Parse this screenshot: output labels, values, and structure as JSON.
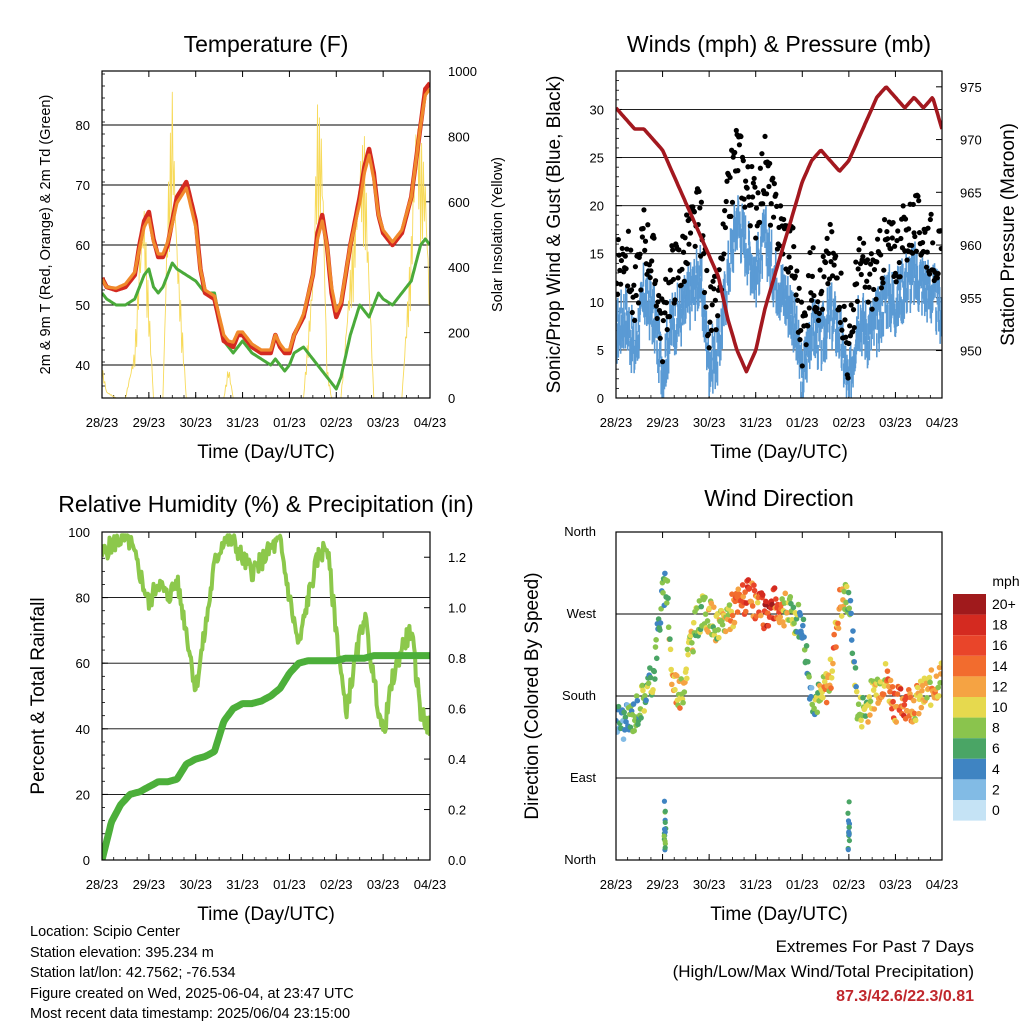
{
  "info": {
    "location": "Location: Scipio Center",
    "elevation": "Station elevation: 395.234 m",
    "latlon": "Station lat/lon: 42.7562; -76.534",
    "created": "Figure created on Wed, 2025-06-04, at 23:47 UTC",
    "recent": "Most recent data timestamp: 2025/06/04 23:15:00"
  },
  "extremes": {
    "title": "Extremes For Past 7 Days",
    "subtitle": "(High/Low/Max Wind/Total Precipitation)",
    "values": "87.3/42.6/22.3/0.81"
  },
  "colors": {
    "t2": "#d42a20",
    "t9": "#f08a2c",
    "td": "#4aaa3a",
    "solar": "#f7da5a",
    "sonic": "#5a9ad4",
    "gust": "#000000",
    "pressure": "#a3181f",
    "rh": "#8cc84b",
    "precip": "#4caf3a"
  },
  "chart_data": [
    {
      "type": "line",
      "title": "Temperature (F)",
      "xlabel": "Time (Day/UTC)",
      "ylabel": "2m & 9m T (Red, Orange) & 2m Td (Green)",
      "y2label": "Solar Insolation (Yellow)",
      "x_ticks": [
        "28/23",
        "29/23",
        "30/23",
        "31/23",
        "01/23",
        "02/23",
        "03/23",
        "04/23"
      ],
      "ylim": [
        34.5,
        89
      ],
      "y_ticks": [
        40,
        50,
        60,
        70,
        80
      ],
      "y2lim": [
        0,
        1000
      ],
      "y2_ticks": [
        0,
        200,
        400,
        600,
        800,
        1000
      ],
      "grid": true,
      "x": [
        0,
        0.1,
        0.3,
        0.5,
        0.7,
        0.8,
        0.9,
        1.0,
        1.1,
        1.2,
        1.3,
        1.4,
        1.5,
        1.6,
        1.8,
        2.0,
        2.1,
        2.2,
        2.4,
        2.6,
        2.7,
        2.8,
        2.9,
        3.0,
        3.2,
        3.4,
        3.6,
        3.7,
        3.8,
        3.9,
        4.0,
        4.1,
        4.3,
        4.5,
        4.6,
        4.7,
        4.8,
        4.9,
        5.0,
        5.1,
        5.3,
        5.5,
        5.6,
        5.7,
        5.8,
        5.9,
        6.0,
        6.2,
        6.4,
        6.6,
        6.7,
        6.8,
        6.9,
        7.0
      ],
      "series": [
        {
          "name": "2m T",
          "color": "#d42a20",
          "values": [
            54.5,
            53,
            52.5,
            53,
            55,
            60,
            64,
            65.5,
            61,
            58,
            58,
            60,
            64,
            68,
            70.5,
            64,
            56,
            52,
            51,
            44,
            43.5,
            43,
            45,
            45,
            43,
            42,
            42,
            45,
            43,
            42,
            42,
            45,
            48,
            55,
            62,
            65,
            60,
            52,
            48,
            50,
            60,
            68,
            73,
            76,
            72,
            65,
            62,
            60,
            62,
            68,
            74,
            80,
            86,
            87
          ]
        },
        {
          "name": "9m T",
          "color": "#f08a2c",
          "values": [
            54.3,
            53,
            52.8,
            53.5,
            55.5,
            59.5,
            63,
            64.5,
            60.5,
            58.5,
            58.5,
            60.5,
            63.5,
            67,
            69.5,
            63,
            56,
            52.5,
            51.5,
            45,
            44,
            43.8,
            45.5,
            45.5,
            43.5,
            42.5,
            42.5,
            45,
            43.5,
            42.5,
            42.5,
            45,
            48.5,
            55,
            61,
            64,
            60,
            53,
            49,
            50.5,
            60,
            67,
            72,
            75,
            71,
            65,
            62.5,
            60.5,
            62.5,
            68,
            74,
            80,
            85,
            86
          ]
        },
        {
          "name": "2m Td",
          "color": "#4aaa3a",
          "values": [
            52,
            51,
            50,
            50,
            51,
            53,
            55,
            56,
            53,
            52,
            53,
            55,
            57,
            56,
            55,
            54,
            53,
            52,
            52,
            44,
            43,
            42,
            43,
            44,
            42,
            41,
            40,
            41,
            40,
            39,
            40,
            42,
            43,
            41,
            40,
            39,
            38,
            37,
            36,
            38,
            45,
            50,
            49,
            48,
            50,
            52,
            51,
            50,
            52,
            54,
            57,
            60,
            61,
            60
          ]
        },
        {
          "name": "Solar",
          "color": "#f7da5a",
          "axis": "y2",
          "values": [
            100,
            20,
            0,
            0,
            150,
            450,
            600,
            300,
            0,
            0,
            0,
            600,
            950,
            500,
            0,
            0,
            0,
            0,
            0,
            0,
            100,
            0,
            0,
            0,
            0,
            0,
            0,
            0,
            0,
            0,
            0,
            0,
            0,
            400,
            900,
            800,
            100,
            0,
            0,
            0,
            400,
            750,
            800,
            400,
            0,
            0,
            0,
            0,
            0,
            500,
            900,
            800,
            700,
            300
          ]
        }
      ]
    },
    {
      "type": "scatter",
      "title": "Winds (mph) & Pressure (mb)",
      "xlabel": "Time (Day/UTC)",
      "ylabel": "Sonic/Prop Wind & Gust (Blue, Black)",
      "y2label": "Station Pressure (Maroon)",
      "x_ticks": [
        "28/23",
        "29/23",
        "30/23",
        "31/23",
        "01/23",
        "02/23",
        "03/23",
        "04/23"
      ],
      "ylim": [
        0,
        34
      ],
      "y_ticks": [
        0,
        5,
        10,
        15,
        20,
        25,
        30
      ],
      "y2lim": [
        945.5,
        976.5
      ],
      "y2_ticks": [
        950,
        955,
        960,
        965,
        970,
        975
      ],
      "grid": true,
      "x": [
        0,
        0.2,
        0.4,
        0.6,
        0.8,
        1.0,
        1.2,
        1.4,
        1.6,
        1.8,
        2.0,
        2.2,
        2.4,
        2.6,
        2.8,
        3.0,
        3.2,
        3.4,
        3.6,
        3.8,
        4.0,
        4.2,
        4.4,
        4.6,
        4.8,
        5.0,
        5.2,
        5.4,
        5.6,
        5.8,
        6.0,
        6.2,
        6.4,
        6.6,
        6.8,
        7.0
      ],
      "series": [
        {
          "name": "Sonic Wind",
          "color": "#5a9ad4",
          "values": [
            8,
            10,
            6,
            12,
            10,
            4,
            9,
            10,
            12,
            14,
            5,
            6,
            14,
            20,
            17,
            14,
            18,
            14,
            12,
            10,
            3,
            9,
            7,
            10,
            8,
            2,
            10,
            8,
            9,
            12,
            11,
            13,
            14,
            13,
            12,
            10
          ]
        },
        {
          "name": "Gust",
          "color": "#000000",
          "values": [
            12,
            16,
            10,
            17,
            14,
            7,
            13,
            14,
            17,
            19,
            8,
            10,
            20,
            26,
            22,
            20,
            24,
            19,
            17,
            15,
            6,
            13,
            11,
            15,
            12,
            4,
            14,
            12,
            13,
            16,
            15,
            17,
            18,
            17,
            16,
            14
          ]
        },
        {
          "name": "Pressure",
          "color": "#a3181f",
          "axis": "y2",
          "values": [
            973,
            972,
            971,
            971,
            970,
            969,
            967,
            965,
            963,
            961,
            959,
            957,
            953,
            950,
            948,
            950,
            954,
            957,
            960,
            963,
            966,
            968,
            969,
            968,
            967,
            968,
            970,
            972,
            974,
            975,
            974,
            973,
            974,
            973,
            974,
            971
          ]
        }
      ]
    },
    {
      "type": "line",
      "title": "Relative Humidity (%) & Precipitation (in)",
      "xlabel": "Time (Day/UTC)",
      "ylabel": "Percent & Total Rainfall",
      "x_ticks": [
        "28/23",
        "29/23",
        "30/23",
        "31/23",
        "01/23",
        "02/23",
        "03/23",
        "04/23"
      ],
      "ylim": [
        0,
        100
      ],
      "y_ticks": [
        0,
        20,
        40,
        60,
        80,
        100
      ],
      "y2lim": [
        0,
        1.3
      ],
      "y2_ticks": [
        "0.0",
        "0.2",
        "0.4",
        "0.6",
        "0.8",
        "1.0",
        "1.2"
      ],
      "grid": true,
      "x": [
        0,
        0.2,
        0.4,
        0.6,
        0.8,
        1.0,
        1.2,
        1.4,
        1.6,
        1.8,
        2.0,
        2.2,
        2.4,
        2.6,
        2.8,
        3.0,
        3.2,
        3.4,
        3.6,
        3.8,
        4.0,
        4.2,
        4.4,
        4.6,
        4.8,
        5.0,
        5.2,
        5.4,
        5.6,
        5.8,
        6.0,
        6.2,
        6.4,
        6.6,
        6.8,
        7.0
      ],
      "series": [
        {
          "name": "Relative Humidity",
          "color": "#8cc84b",
          "values": [
            93,
            96,
            98,
            97,
            88,
            78,
            85,
            80,
            85,
            70,
            52,
            70,
            90,
            98,
            97,
            92,
            88,
            91,
            95,
            97,
            80,
            65,
            80,
            92,
            96,
            70,
            45,
            60,
            75,
            55,
            38,
            55,
            65,
            70,
            45,
            40
          ]
        },
        {
          "name": "Total Precipitation",
          "color": "#4caf3a",
          "axis": "y2",
          "values": [
            0,
            0.15,
            0.22,
            0.26,
            0.27,
            0.29,
            0.31,
            0.31,
            0.32,
            0.38,
            0.4,
            0.41,
            0.43,
            0.55,
            0.6,
            0.62,
            0.62,
            0.63,
            0.65,
            0.68,
            0.74,
            0.78,
            0.79,
            0.79,
            0.79,
            0.79,
            0.8,
            0.8,
            0.8,
            0.81,
            0.81,
            0.81,
            0.81,
            0.81,
            0.81,
            0.81
          ]
        }
      ]
    },
    {
      "type": "scatter",
      "title": "Wind Direction",
      "xlabel": "Time (Day/UTC)",
      "ylabel": "Direction (Colored By Speed)",
      "x_ticks": [
        "28/23",
        "29/23",
        "30/23",
        "31/23",
        "01/23",
        "02/23",
        "03/23",
        "04/23"
      ],
      "y_ticks": [
        "North",
        "East",
        "South",
        "West",
        "North"
      ],
      "ylim": [
        0,
        360
      ],
      "grid": true,
      "legend": {
        "title": "mph",
        "labels": [
          "20+",
          "18",
          "16",
          "14",
          "12",
          "10",
          "8",
          "6",
          "4",
          "2",
          "0"
        ],
        "colors": [
          "#a01a1c",
          "#d42a20",
          "#e9452a",
          "#f26c2e",
          "#f5a343",
          "#e6d94e",
          "#8ac44d",
          "#4aa565",
          "#3f84c2",
          "#82bbe5",
          "#c5e3f5"
        ]
      },
      "x": [
        0,
        0.2,
        0.4,
        0.6,
        0.8,
        0.9,
        1.0,
        1.1,
        1.2,
        1.4,
        1.6,
        1.8,
        2.0,
        2.2,
        2.4,
        2.6,
        2.8,
        3.0,
        3.2,
        3.4,
        3.6,
        3.8,
        4.0,
        4.2,
        4.4,
        4.6,
        4.8,
        5.0,
        5.2,
        5.4,
        5.6,
        5.8,
        6.0,
        6.2,
        6.4,
        6.6,
        6.8,
        7.0
      ],
      "series": [
        {
          "name": "Direction",
          "values": [
            155,
            150,
            160,
            180,
            200,
            250,
            290,
            300,
            200,
            180,
            240,
            270,
            270,
            250,
            270,
            280,
            290,
            280,
            270,
            280,
            275,
            270,
            260,
            180,
            175,
            200,
            280,
            290,
            160,
            170,
            190,
            200,
            170,
            175,
            170,
            180,
            190,
            200
          ],
          "speeds": [
            4,
            4,
            6,
            7,
            8,
            6,
            5,
            6,
            12,
            10,
            9,
            8,
            10,
            9,
            10,
            14,
            16,
            12,
            18,
            16,
            10,
            8,
            4,
            5,
            10,
            12,
            14,
            6,
            8,
            9,
            10,
            12,
            14,
            15,
            12,
            10,
            11,
            12
          ]
        }
      ]
    }
  ]
}
